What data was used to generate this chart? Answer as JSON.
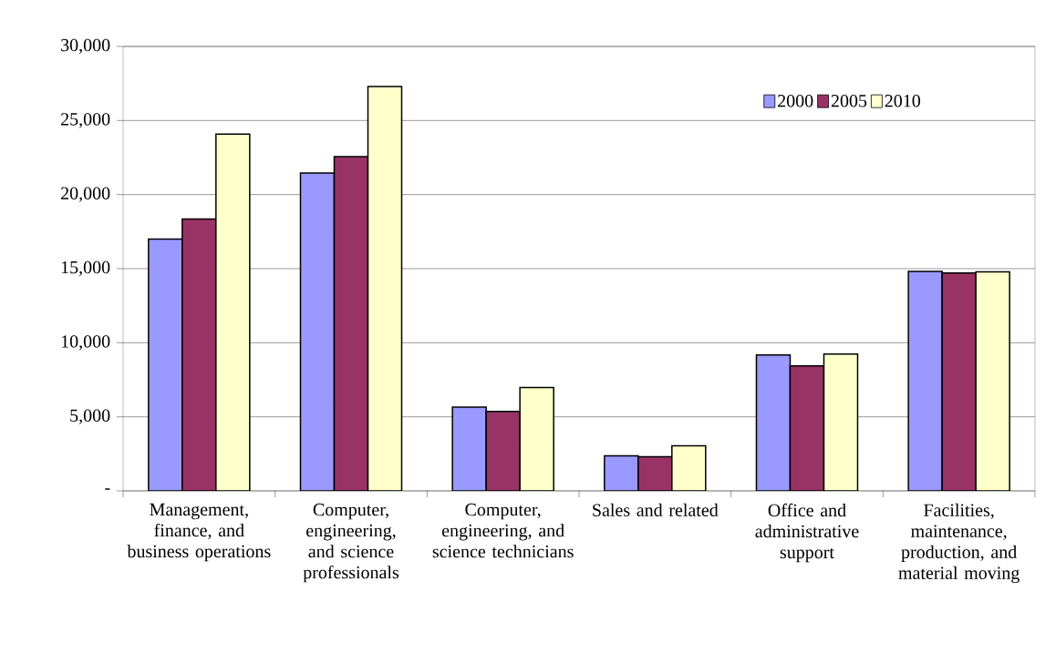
{
  "chart_data": {
    "type": "bar",
    "categories": [
      "Management, finance, and business operations",
      "Computer, engineering, and science professionals",
      "Computer, engineering, and science technicians",
      "Sales and related",
      "Office and administrative support",
      "Facilities, maintenance, production, and material moving"
    ],
    "series": [
      {
        "name": "2000",
        "color": "#9999ff",
        "values": [
          17000,
          21450,
          5650,
          2360,
          9180,
          14820
        ]
      },
      {
        "name": "2005",
        "color": "#993366",
        "values": [
          18350,
          22560,
          5360,
          2300,
          8440,
          14700
        ]
      },
      {
        "name": "2010",
        "color": "#ffffcc",
        "values": [
          24080,
          27300,
          6980,
          3040,
          9240,
          14780
        ]
      }
    ],
    "ylim": [
      0,
      30000
    ],
    "yticks": [
      {
        "value": 0,
        "label": "-"
      },
      {
        "value": 5000,
        "label": "5,000"
      },
      {
        "value": 10000,
        "label": "10,000"
      },
      {
        "value": 15000,
        "label": "15,000"
      },
      {
        "value": 20000,
        "label": "20,000"
      },
      {
        "value": 25000,
        "label": "25,000"
      },
      {
        "value": 30000,
        "label": "30,000"
      }
    ],
    "grid": "y",
    "legend": "top right"
  }
}
